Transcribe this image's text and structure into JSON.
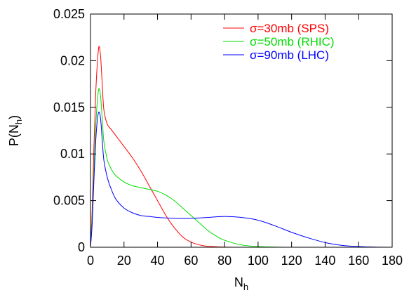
{
  "chart_data": {
    "type": "line",
    "xlabel": "N",
    "xlabel_sub": "h",
    "ylabel": "P(N",
    "ylabel_sub": "h",
    "ylabel_suffix": ")",
    "xlim": [
      0,
      180
    ],
    "ylim": [
      0,
      0.025
    ],
    "xticks": [
      0,
      20,
      40,
      60,
      80,
      100,
      120,
      140,
      160,
      180
    ],
    "xtick_labels": [
      "0",
      "20",
      "40",
      "60",
      "80",
      "100",
      "120",
      "140",
      "160",
      "180"
    ],
    "yticks": [
      0,
      0.005,
      0.01,
      0.015,
      0.02,
      0.025
    ],
    "ytick_labels": [
      "0",
      "0.005",
      "0.01",
      "0.015",
      "0.02",
      "0.025"
    ],
    "grid": false,
    "legend_position": "top-right",
    "series": [
      {
        "name": "σ=30mb (SPS)",
        "color": "#ff0000",
        "x": [
          0,
          1,
          2,
          3,
          4,
          5,
          6,
          7,
          8,
          10,
          12,
          15,
          20,
          25,
          30,
          35,
          40,
          45,
          50,
          55,
          60,
          65,
          70,
          80,
          90,
          100,
          120,
          140,
          160,
          180
        ],
        "y": [
          0,
          0.004,
          0.0105,
          0.016,
          0.0195,
          0.0215,
          0.0205,
          0.0175,
          0.0147,
          0.0132,
          0.0127,
          0.012,
          0.0108,
          0.0096,
          0.0082,
          0.0066,
          0.005,
          0.0034,
          0.0021,
          0.0011,
          0.00055,
          0.00025,
          0.0001,
          2e-05,
          0,
          0,
          0,
          0,
          0,
          0
        ]
      },
      {
        "name": "σ=50mb (RHIC)",
        "color": "#00dd00",
        "x": [
          0,
          1,
          2,
          3,
          4,
          5,
          6,
          7,
          8,
          10,
          12,
          15,
          20,
          25,
          30,
          35,
          40,
          45,
          50,
          55,
          60,
          65,
          70,
          75,
          80,
          90,
          100,
          110,
          120,
          140,
          160,
          180
        ],
        "y": [
          0,
          0.003,
          0.008,
          0.0125,
          0.0155,
          0.017,
          0.0162,
          0.0138,
          0.0113,
          0.0094,
          0.0085,
          0.0077,
          0.007,
          0.0066,
          0.0064,
          0.0062,
          0.006,
          0.0056,
          0.005,
          0.0042,
          0.0034,
          0.0026,
          0.0018,
          0.0012,
          0.00075,
          0.00025,
          8e-05,
          2e-05,
          0,
          0,
          0,
          0
        ]
      },
      {
        "name": "σ=90mb (LHC)",
        "color": "#0000ff",
        "x": [
          0,
          1,
          2,
          3,
          4,
          5,
          6,
          7,
          8,
          10,
          12,
          15,
          20,
          25,
          30,
          35,
          40,
          50,
          60,
          70,
          80,
          90,
          100,
          110,
          120,
          130,
          140,
          150,
          160,
          170,
          180
        ],
        "y": [
          0,
          0.0025,
          0.007,
          0.011,
          0.0135,
          0.0145,
          0.0138,
          0.0115,
          0.0093,
          0.0075,
          0.0064,
          0.0052,
          0.0042,
          0.0037,
          0.0034,
          0.0033,
          0.0032,
          0.0031,
          0.0031,
          0.0032,
          0.0033,
          0.0032,
          0.0029,
          0.0023,
          0.0016,
          0.001,
          0.0005,
          0.0002,
          8e-05,
          2e-05,
          0
        ]
      }
    ]
  }
}
